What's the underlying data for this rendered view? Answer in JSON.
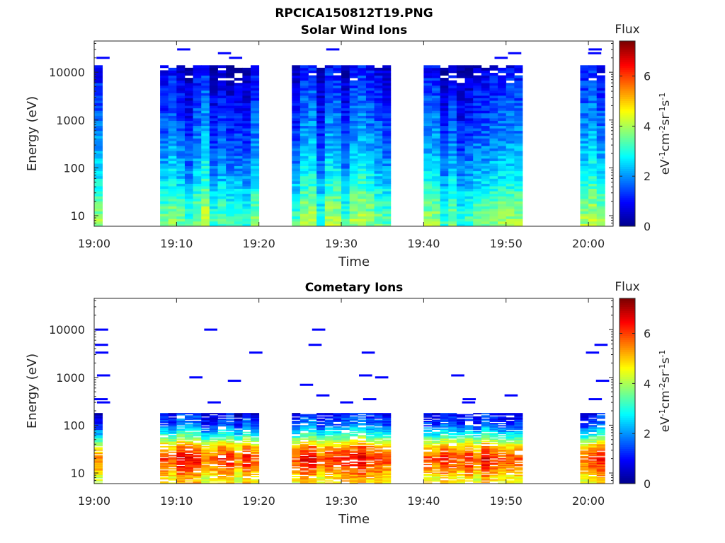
{
  "figure": {
    "title": "RPCICA150812T19.PNG"
  },
  "colors": {
    "colormap": [
      "#00008f",
      "#0000ff",
      "#0080ff",
      "#00ffff",
      "#80ff80",
      "#ffff00",
      "#ff8000",
      "#ff0000",
      "#800000"
    ],
    "axes": "#262626",
    "background": "#ffffff"
  },
  "chart_data": [
    {
      "type": "heatmap",
      "title": "Solar Wind Ions",
      "xlabel": "Time",
      "ylabel": "Energy (eV)",
      "yscale": "log",
      "xlim": [
        "19:00",
        "20:03"
      ],
      "ylim": [
        6,
        45000
      ],
      "x_ticks": [
        "19:00",
        "19:10",
        "19:20",
        "19:30",
        "19:40",
        "19:50",
        "20:00"
      ],
      "y_ticks": [
        10,
        100,
        1000,
        10000
      ],
      "y_tick_labels": [
        "10",
        "100",
        "1000",
        "10000"
      ],
      "colorbar": {
        "title": "Flux",
        "label": "eV-1cm-2sr-1s-1",
        "range": [
          0,
          7.4
        ],
        "ticks": [
          "0",
          "2",
          "4",
          "6"
        ]
      },
      "data_segments": [
        {
          "start": "19:00",
          "end": "19:01"
        },
        {
          "start": "19:08",
          "end": "19:20"
        },
        {
          "start": "19:24",
          "end": "19:36"
        },
        {
          "start": "19:40",
          "end": "19:52"
        },
        {
          "start": "19:59",
          "end": "20:02"
        }
      ],
      "flux_profile": {
        "energy": [
          8,
          20,
          50,
          150,
          500,
          2000,
          8000,
          14000
        ],
        "flux": [
          3.6,
          3.2,
          2.6,
          2.1,
          1.7,
          1.3,
          0.9,
          0.5
        ]
      },
      "max_energy": 14000,
      "sparse_high_energy_lines": [
        30000,
        25000,
        20000
      ]
    },
    {
      "type": "heatmap",
      "title": "Cometary Ions",
      "xlabel": "Time",
      "ylabel": "Energy (eV)",
      "yscale": "log",
      "xlim": [
        "19:00",
        "20:03"
      ],
      "ylim": [
        6,
        45000
      ],
      "x_ticks": [
        "19:00",
        "19:10",
        "19:20",
        "19:30",
        "19:40",
        "19:50",
        "20:00"
      ],
      "y_ticks": [
        10,
        100,
        1000,
        10000
      ],
      "y_tick_labels": [
        "10",
        "100",
        "1000",
        "10000"
      ],
      "colorbar": {
        "title": "Flux",
        "label": "eV-1cm-2sr-1s-1",
        "range": [
          0,
          7.4
        ],
        "ticks": [
          "0",
          "2",
          "4",
          "6"
        ]
      },
      "data_segments": [
        {
          "start": "19:00",
          "end": "19:01"
        },
        {
          "start": "19:08",
          "end": "19:20"
        },
        {
          "start": "19:24",
          "end": "19:36"
        },
        {
          "start": "19:40",
          "end": "19:52"
        },
        {
          "start": "19:59",
          "end": "20:02"
        }
      ],
      "flux_profile": {
        "energy": [
          8,
          12,
          20,
          35,
          60,
          100,
          180
        ],
        "flux": [
          4.8,
          5.6,
          6.2,
          5.2,
          3.2,
          1.6,
          0.9
        ]
      },
      "max_energy": 180,
      "sparse_high_energy_lines": [
        10000,
        4800,
        3300,
        1100,
        1000,
        850,
        700,
        420,
        350,
        300
      ]
    }
  ]
}
